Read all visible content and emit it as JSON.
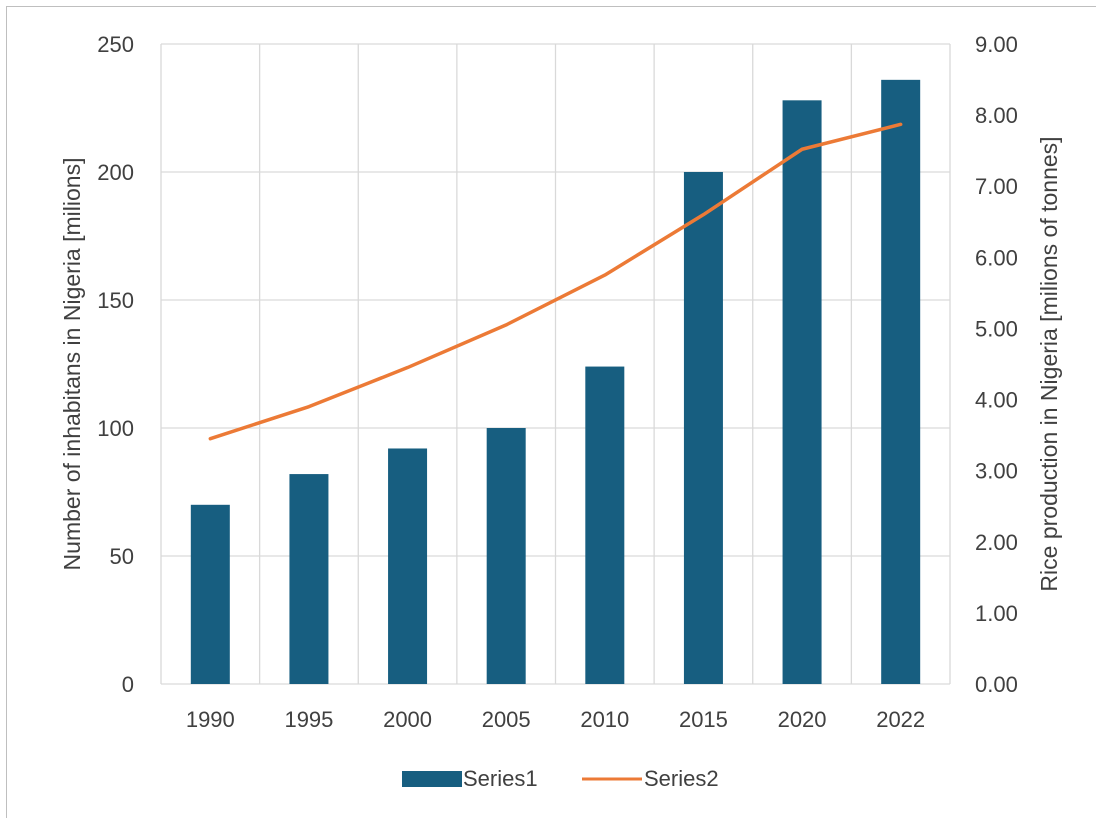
{
  "chart_data": {
    "type": "bar",
    "categories": [
      "1990",
      "1995",
      "2000",
      "2005",
      "2010",
      "2015",
      "2020",
      "2022"
    ],
    "series": [
      {
        "name": "Series1",
        "type": "bar",
        "axis": "left",
        "color": "#175e80",
        "values": [
          70,
          82,
          92,
          100,
          124,
          200,
          228,
          236
        ]
      },
      {
        "name": "Series2",
        "type": "line",
        "axis": "right",
        "color": "#ec7a36",
        "values": [
          3.45,
          3.9,
          4.45,
          5.05,
          5.75,
          6.6,
          7.52,
          7.87
        ]
      }
    ],
    "ylabel": "Number of inhabitans in Nigeria [milions]",
    "y2label": "Rice production in Nigeria [milions of tonnes]",
    "ylim": [
      0,
      250
    ],
    "yticks": [
      "0",
      "50",
      "100",
      "150",
      "200",
      "250"
    ],
    "y2lim": [
      0,
      9
    ],
    "y2ticks": [
      "0.00",
      "1.00",
      "2.00",
      "3.00",
      "4.00",
      "5.00",
      "6.00",
      "7.00",
      "8.00",
      "9.00"
    ],
    "grid": true,
    "legend_position": "bottom"
  }
}
